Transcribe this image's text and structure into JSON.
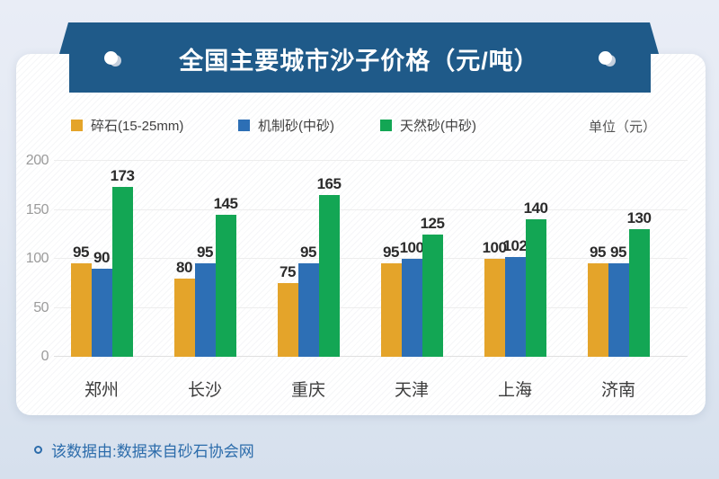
{
  "banner": {
    "title": "全国主要城市沙子价格（元/吨）"
  },
  "chart_data": {
    "type": "bar",
    "title": "全国主要城市沙子价格（元/吨）",
    "annotation": "单位（元）",
    "categories": [
      "郑州",
      "长沙",
      "重庆",
      "天津",
      "上海",
      "济南"
    ],
    "series": [
      {
        "name": "碎石(15-25mm)",
        "color": "#e4a42a",
        "values": [
          95,
          80,
          75,
          95,
          100,
          95
        ]
      },
      {
        "name": "机制砂(中砂)",
        "color": "#2d6fb5",
        "values": [
          90,
          95,
          95,
          100,
          102,
          95
        ]
      },
      {
        "name": "天然砂(中砂)",
        "color": "#13a654",
        "values": [
          173,
          145,
          165,
          125,
          140,
          130
        ]
      }
    ],
    "xlabel": "",
    "ylabel": "",
    "ylim": [
      0,
      200
    ],
    "yticks": [
      0,
      50,
      100,
      150,
      200
    ],
    "grid": true,
    "legend_position": "top-left",
    "value_labels": true
  },
  "footer": {
    "note": "该数据由:数据来自砂石协会网"
  },
  "colors": {
    "banner": "#1f5a89",
    "footer_text": "#2c6cab",
    "value_label": "#2b2b2b",
    "axis_label": "#9b9b9b",
    "city_label": "#3b3b3b"
  }
}
